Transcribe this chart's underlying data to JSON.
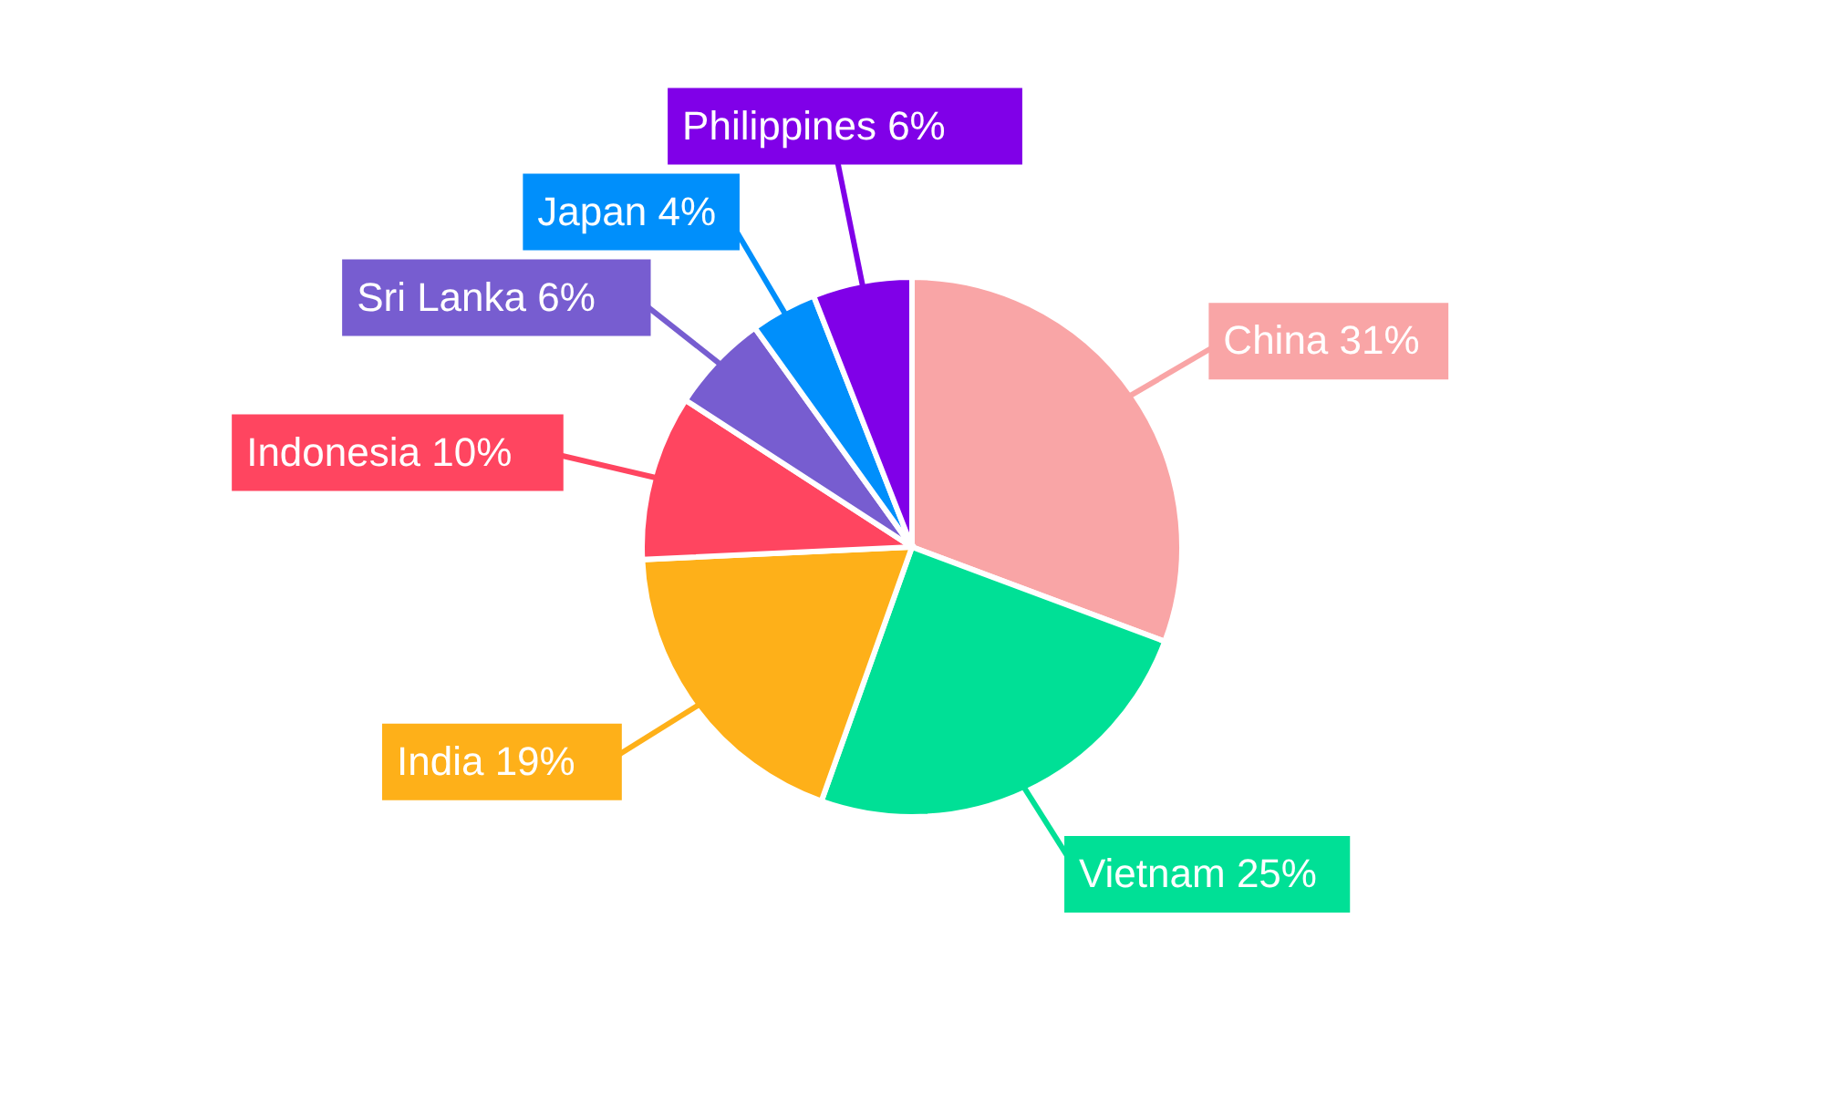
{
  "chart_data": {
    "type": "pie",
    "categories": [
      "China",
      "Vietnam",
      "India",
      "Indonesia",
      "Sri Lanka",
      "Japan",
      "Philippines"
    ],
    "values": [
      31,
      25,
      19,
      10,
      6,
      4,
      6
    ],
    "value_labels": [
      "31%",
      "25%",
      "19%",
      "10%",
      "6%",
      "4%",
      "6%"
    ],
    "colors": [
      "#f9a5a6",
      "#00e096",
      "#feb019",
      "#ff4560",
      "#775dd0",
      "#008ffb",
      "#8000e8"
    ]
  }
}
